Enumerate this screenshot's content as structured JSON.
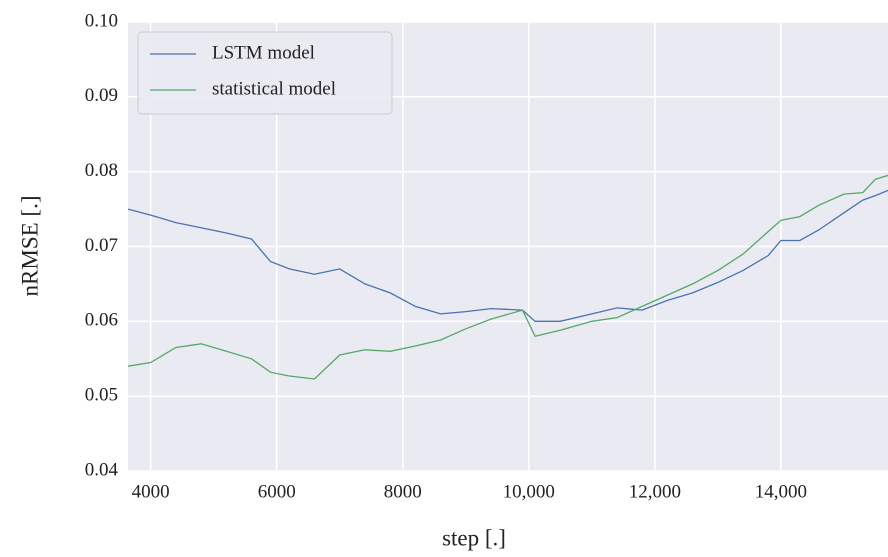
{
  "chart_data": {
    "type": "line",
    "xlabel": "step [.]",
    "ylabel": "nRMSE [.]",
    "x": [
      3640,
      4000,
      4400,
      4800,
      5200,
      5600,
      5900,
      6200,
      6600,
      7000,
      7400,
      7800,
      8200,
      8600,
      9000,
      9400,
      9900,
      10100,
      10500,
      11000,
      11400,
      11800,
      12200,
      12600,
      13000,
      13400,
      13800,
      14000,
      14300,
      14600,
      15000,
      15300,
      15500,
      15700
    ],
    "series": [
      {
        "name": "LSTM model",
        "color": "#4c72b0",
        "values": [
          0.075,
          0.0742,
          0.0732,
          0.0725,
          0.0718,
          0.071,
          0.068,
          0.067,
          0.0663,
          0.067,
          0.065,
          0.0638,
          0.062,
          0.061,
          0.0613,
          0.0617,
          0.0615,
          0.06,
          0.06,
          0.061,
          0.0618,
          0.0615,
          0.0628,
          0.0638,
          0.0652,
          0.0668,
          0.0688,
          0.0708,
          0.0708,
          0.0722,
          0.0745,
          0.0762,
          0.0768,
          0.0775
        ]
      },
      {
        "name": "statistical model",
        "color": "#55a868",
        "values": [
          0.054,
          0.0545,
          0.0565,
          0.057,
          0.056,
          0.055,
          0.0532,
          0.0527,
          0.0523,
          0.0555,
          0.0562,
          0.056,
          0.0567,
          0.0575,
          0.059,
          0.0603,
          0.0615,
          0.058,
          0.0588,
          0.06,
          0.0605,
          0.062,
          0.0635,
          0.065,
          0.0668,
          0.069,
          0.072,
          0.0735,
          0.074,
          0.0755,
          0.077,
          0.0772,
          0.079,
          0.0795
        ]
      }
    ],
    "xlim": [
      3640,
      15700
    ],
    "xticks": [
      4000,
      6000,
      8000,
      {
        "value": 10000,
        "label": "10,000"
      },
      {
        "value": 12000,
        "label": "12,000"
      },
      {
        "value": 14000,
        "label": "14,000"
      }
    ],
    "ylim": [
      0.04,
      0.1
    ],
    "yticks": [
      0.04,
      0.05,
      0.06,
      0.07,
      0.08,
      0.09,
      {
        "value": 0.1,
        "label": "0.10"
      }
    ],
    "grid": true,
    "legend": "upper left"
  }
}
